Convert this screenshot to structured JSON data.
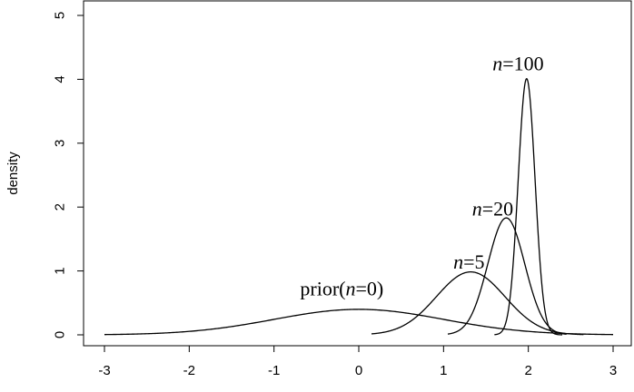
{
  "chart_data": {
    "type": "line",
    "title": "",
    "xlabel": "",
    "ylabel": "density",
    "xlim": [
      -3,
      3
    ],
    "ylim": [
      0,
      5
    ],
    "x_ticks": [
      -3,
      -2,
      -1,
      0,
      1,
      2,
      3
    ],
    "y_ticks": [
      0,
      1,
      2,
      3,
      4,
      5
    ],
    "grid": false,
    "legend": "none",
    "series": [
      {
        "label_prefix": "prior(",
        "label_italic": "n",
        "label_suffix": "=0)",
        "curve": "normal",
        "mean": 0.0,
        "sd": 1.0,
        "x_range": [
          -3,
          3
        ],
        "label_at": [
          -0.2,
          0.62
        ]
      },
      {
        "label_prefix": "",
        "label_italic": "n",
        "label_suffix": "=5",
        "curve": "normal",
        "mean": 1.32,
        "sd": 0.405,
        "x_range": [
          0.15,
          2.65
        ],
        "label_at": [
          1.3,
          1.04
        ]
      },
      {
        "label_prefix": "",
        "label_italic": "n",
        "label_suffix": "=20",
        "curve": "normal",
        "mean": 1.74,
        "sd": 0.218,
        "x_range": [
          1.05,
          2.45
        ],
        "label_at": [
          1.58,
          1.87
        ]
      },
      {
        "label_prefix": "",
        "label_italic": "n",
        "label_suffix": "=100",
        "curve": "normal",
        "mean": 1.98,
        "sd": 0.0995,
        "x_range": [
          1.6,
          2.4
        ],
        "label_at": [
          1.88,
          4.14
        ]
      }
    ]
  }
}
